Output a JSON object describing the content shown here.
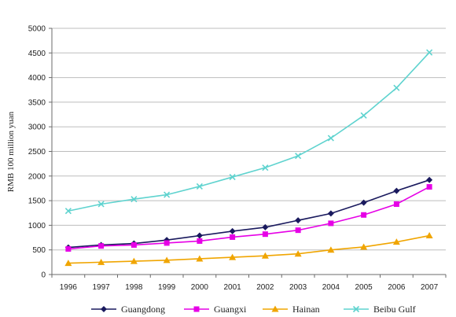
{
  "chart_data": {
    "type": "line",
    "title": "",
    "xlabel": "",
    "ylabel": "RMB 100 million yuan",
    "ylim": [
      0,
      5000
    ],
    "y_ticks": [
      "0",
      "500",
      "1000",
      "1500",
      "2000",
      "2500",
      "3000",
      "3500",
      "4000",
      "4500",
      "5000"
    ],
    "x": [
      "1996",
      "1997",
      "1998",
      "1999",
      "2000",
      "2001",
      "2002",
      "2003",
      "2004",
      "2005",
      "2006",
      "2007"
    ],
    "grid": true,
    "legend_position": "bottom",
    "series": [
      {
        "name": "Guangdong",
        "color": "#1a1a5e",
        "marker": "diamond",
        "values": [
          550,
          600,
          630,
          700,
          790,
          880,
          960,
          1100,
          1240,
          1460,
          1700,
          1920
        ]
      },
      {
        "name": "Guangxi",
        "color": "#e600e6",
        "marker": "square",
        "values": [
          520,
          580,
          600,
          640,
          680,
          760,
          820,
          900,
          1040,
          1210,
          1430,
          1780
        ]
      },
      {
        "name": "Hainan",
        "color": "#f0a500",
        "marker": "triangle",
        "values": [
          230,
          250,
          270,
          290,
          320,
          350,
          380,
          420,
          500,
          560,
          660,
          790
        ]
      },
      {
        "name": "Beibu Gulf",
        "color": "#5fd3cf",
        "marker": "x",
        "values": [
          1290,
          1430,
          1530,
          1620,
          1790,
          1980,
          2170,
          2410,
          2770,
          3230,
          3790,
          4510
        ]
      }
    ]
  }
}
